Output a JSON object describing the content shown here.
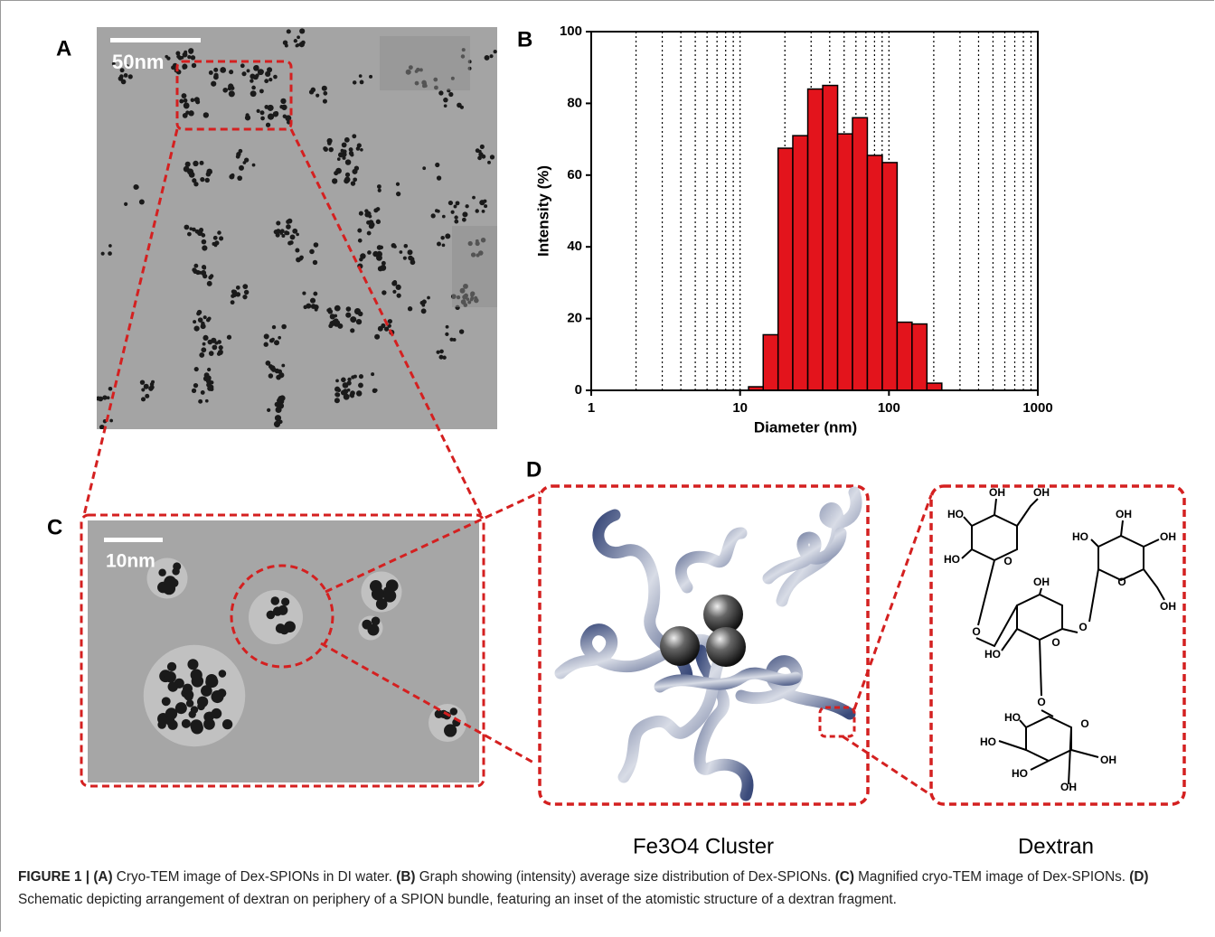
{
  "panels": {
    "a": {
      "label": "A",
      "scale_bar": "50nm"
    },
    "b": {
      "label": "B"
    },
    "c": {
      "label": "C",
      "scale_bar": "10nm"
    },
    "d": {
      "label": "D",
      "cluster_caption": "Fe3O4 Cluster",
      "dextran_caption": "Dextran",
      "dextran_atoms": [
        "OH",
        "OH",
        "HO",
        "HO",
        "O",
        "O",
        "OH",
        "HO",
        "OH",
        "O",
        "OH",
        "O",
        "OH",
        "HO",
        "O",
        "O",
        "HO",
        "O",
        "HO",
        "OH",
        "HO",
        "OH"
      ]
    }
  },
  "chart_data": {
    "type": "histogram",
    "x_label": "Diameter (nm)",
    "y_label": "Intensity (%)",
    "bins": [
      11.4,
      14.3,
      18.0,
      22.6,
      28.5,
      35.9,
      45.2,
      56.9,
      71.6,
      90.2,
      113.5,
      142.9,
      179.9,
      226.5
    ],
    "values": [
      1,
      15.5,
      67.5,
      71,
      84,
      85,
      71.5,
      76,
      65.5,
      63.5,
      19,
      18.5,
      2
    ],
    "color": "#e3141c",
    "x_log": true,
    "xlim": [
      1,
      1000
    ],
    "ylim": [
      0,
      100
    ],
    "xticks": [
      1,
      10,
      100,
      1000
    ],
    "yticks": [
      0,
      20,
      40,
      60,
      80,
      100
    ],
    "x_minor_grid": [
      2,
      3,
      4,
      5,
      6,
      7,
      8,
      9,
      20,
      30,
      40,
      50,
      60,
      70,
      80,
      90,
      200,
      300,
      400,
      500,
      600,
      700,
      800,
      900
    ],
    "grid": "dotted"
  },
  "caption": [
    {
      "text": "FIGURE 1 | (A)",
      "bold": true
    },
    {
      "text": " Cryo-TEM image of Dex-SPIONs in DI water. ",
      "bold": false
    },
    {
      "text": "(B)",
      "bold": true
    },
    {
      "text": " Graph showing (intensity) average size distribution of Dex-SPIONs. ",
      "bold": false
    },
    {
      "text": "(C)",
      "bold": true
    },
    {
      "text": " Magnified cryo-TEM image of Dex-SPIONs. ",
      "bold": false
    },
    {
      "text": "(D)",
      "bold": true
    },
    {
      "text": " Schematic depicting arrangement of dextran on periphery of a SPION bundle, featuring an inset of the atomistic structure of a dextran fragment.",
      "bold": false
    }
  ]
}
